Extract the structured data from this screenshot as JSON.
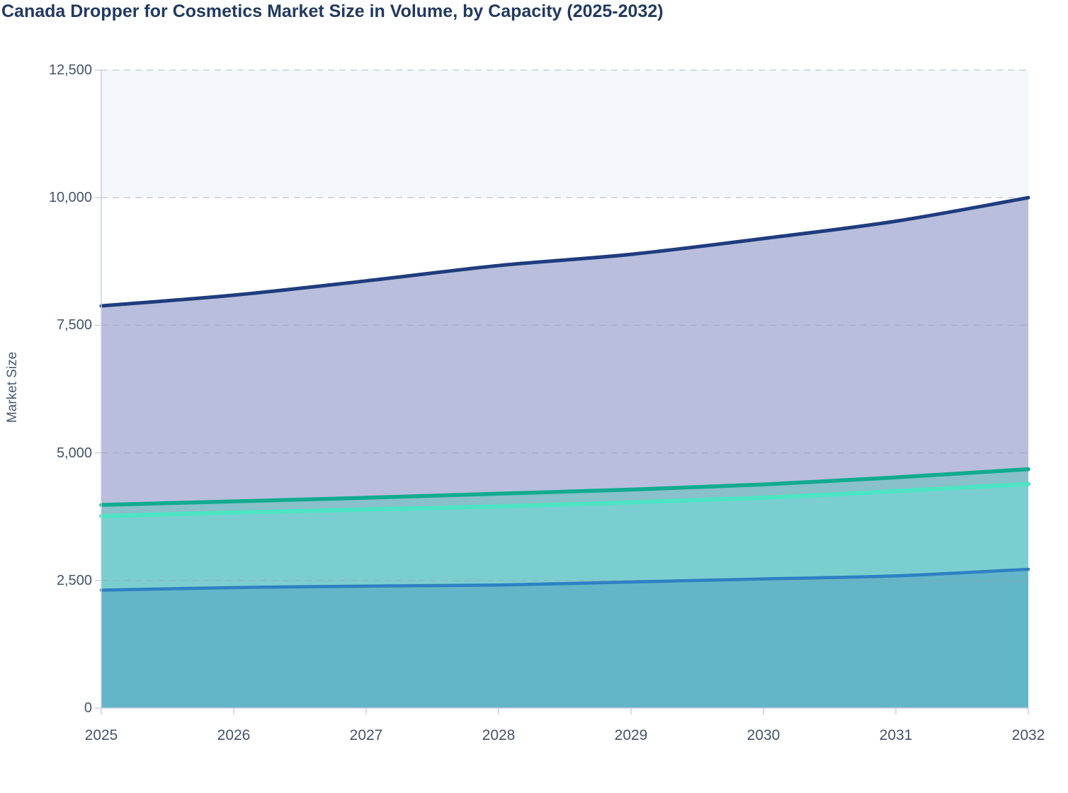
{
  "page": {
    "title": "Canada Dropper for Cosmetics Market Size in Volume, by Capacity (2025-2032)"
  },
  "y_axis": {
    "title": "Market Size"
  },
  "chart_data": {
    "type": "area",
    "title": "Canada Dropper for Cosmetics Market Size in Volume, by Capacity (2025-2032)",
    "xlabel": "",
    "ylabel": "Market Size",
    "x": [
      2025,
      2026,
      2027,
      2028,
      2029,
      2030,
      2031,
      2032
    ],
    "x_tick_labels": [
      "2025",
      "2026",
      "2027",
      "2028",
      "2029",
      "2030",
      "2031",
      "2032"
    ],
    "y_ticks": [
      {
        "value": 0,
        "label": "0"
      },
      {
        "value": 2500,
        "label": "2,500"
      },
      {
        "value": 5000,
        "label": "5,000"
      },
      {
        "value": 7500,
        "label": "7,500"
      },
      {
        "value": 10000,
        "label": "10,000"
      },
      {
        "value": 12500,
        "label": "12,500"
      }
    ],
    "ylim": [
      0,
      12500
    ],
    "grid": true,
    "legend": false,
    "series": [
      {
        "id": "navy",
        "color": "#1f3c7e",
        "fill": "#b8bedb",
        "line_width": 5,
        "values": [
          7880,
          8090,
          8370,
          8670,
          8890,
          9200,
          9540,
          10000
        ]
      },
      {
        "id": "teal",
        "color": "#10ab90",
        "fill": "#89c0ca",
        "line_width": 5.5,
        "values": [
          3980,
          4050,
          4120,
          4200,
          4280,
          4380,
          4520,
          4680
        ]
      },
      {
        "id": "mint",
        "color": "#4ce4c4",
        "fill": "#7bced0",
        "line_width": 6,
        "values": [
          3760,
          3830,
          3890,
          3950,
          4030,
          4120,
          4250,
          4390
        ]
      },
      {
        "id": "blue",
        "color": "#2e80c3",
        "fill": "#63b6c7",
        "line_width": 4.5,
        "values": [
          2310,
          2360,
          2390,
          2410,
          2470,
          2530,
          2590,
          2720
        ]
      }
    ],
    "colors": {
      "background": "#ffffff",
      "top_band": "#f4f7fb",
      "grid": "#9aa2ae",
      "axis": "#c7d0e2",
      "tick_label": "#44536c",
      "title": "#223a60",
      "axis_title": "#475a74"
    }
  }
}
